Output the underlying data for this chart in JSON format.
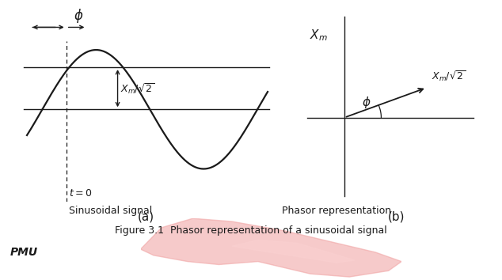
{
  "bg_color": "#ffffff",
  "fig_width": 6.34,
  "fig_height": 3.54,
  "dpi": 100,
  "sine_color": "#1a1a1a",
  "axis_color": "#1a1a1a",
  "phi_label": "$\\phi$",
  "xm_label": "$X_m$",
  "xm_rms_label": "$X_m/\\sqrt{2}$",
  "t0_label": "$t=0$",
  "label_a": "(a)",
  "label_b": "(b)",
  "caption_a": "Sinusoidal signal",
  "caption_b": "Phasor representation",
  "figure_caption": "Figure 3.1  Phasor representation of a sinusoidal signal",
  "pmu_label": "PMU",
  "sine_phase": 0.7,
  "amplitude": 1.0,
  "watermark_color": "#f0a0a0",
  "watermark_alpha": 0.55
}
